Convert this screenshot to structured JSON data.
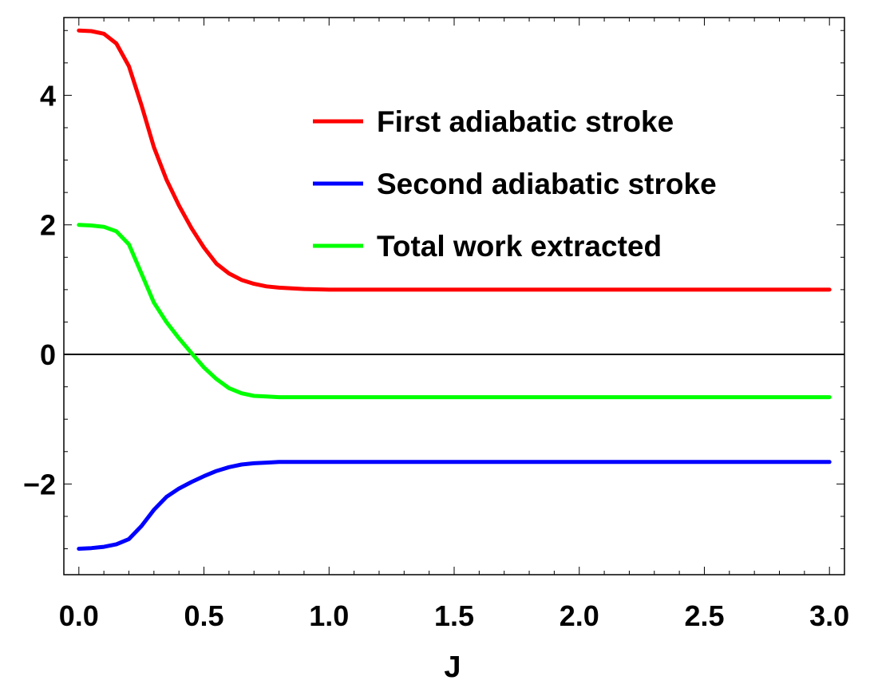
{
  "chart_data": {
    "type": "line",
    "title": "",
    "xlabel": "J",
    "ylabel": "",
    "xlim": [
      -0.06,
      3.06
    ],
    "ylim": [
      -3.4,
      5.2
    ],
    "x_ticks": [
      "0.0",
      "0.5",
      "1.0",
      "1.5",
      "2.0",
      "2.5",
      "3.0"
    ],
    "x_tick_values": [
      0,
      0.5,
      1.0,
      1.5,
      2.0,
      2.5,
      3.0
    ],
    "y_ticks": [
      "−2",
      "0",
      "2",
      "4"
    ],
    "y_tick_values": [
      -2,
      0,
      2,
      4
    ],
    "zero_line": true,
    "grid": false,
    "legend_position": "upper-right",
    "x": [
      0,
      0.05,
      0.1,
      0.15,
      0.2,
      0.25,
      0.3,
      0.35,
      0.4,
      0.45,
      0.5,
      0.55,
      0.6,
      0.65,
      0.7,
      0.75,
      0.8,
      0.9,
      1.0,
      1.2,
      1.5,
      2.0,
      2.5,
      3.0
    ],
    "series": [
      {
        "name": "First adiabatic stroke",
        "color": "#ff0000",
        "values": [
          5.0,
          4.99,
          4.95,
          4.8,
          4.45,
          3.85,
          3.2,
          2.7,
          2.3,
          1.95,
          1.65,
          1.4,
          1.25,
          1.15,
          1.09,
          1.05,
          1.03,
          1.01,
          1.0,
          1.0,
          1.0,
          1.0,
          1.0,
          1.0
        ]
      },
      {
        "name": "Second adiabatic stroke",
        "color": "#0000ff",
        "values": [
          -3.0,
          -2.99,
          -2.97,
          -2.93,
          -2.85,
          -2.65,
          -2.4,
          -2.2,
          -2.07,
          -1.97,
          -1.88,
          -1.8,
          -1.74,
          -1.7,
          -1.68,
          -1.67,
          -1.66,
          -1.66,
          -1.66,
          -1.66,
          -1.66,
          -1.66,
          -1.66,
          -1.66
        ]
      },
      {
        "name": "Total work extracted",
        "color": "#00ff00",
        "values": [
          2.0,
          1.99,
          1.97,
          1.9,
          1.7,
          1.25,
          0.8,
          0.5,
          0.25,
          0.02,
          -0.2,
          -0.38,
          -0.52,
          -0.6,
          -0.64,
          -0.65,
          -0.66,
          -0.66,
          -0.66,
          -0.66,
          -0.66,
          -0.66,
          -0.66,
          -0.66
        ]
      }
    ]
  }
}
